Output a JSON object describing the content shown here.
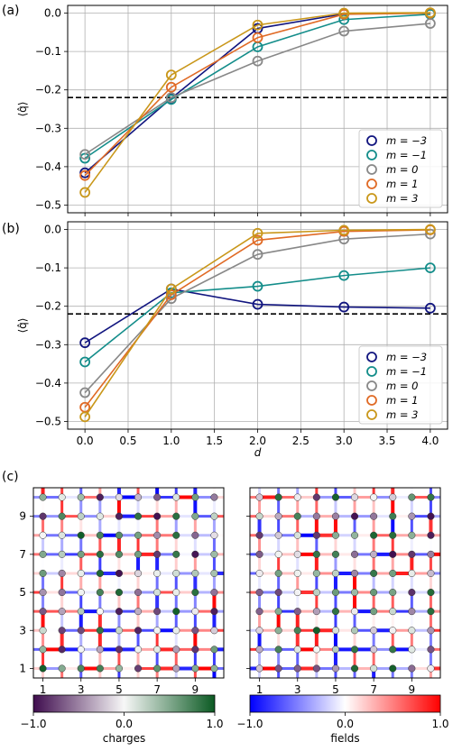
{
  "chart_data": [
    {
      "panel": "(a)",
      "type": "line",
      "x": [
        0,
        1,
        2,
        3,
        4
      ],
      "xlim": [
        -0.2,
        4.2
      ],
      "ylim": [
        -0.52,
        0.02
      ],
      "xticks": [
        "0.0",
        "0.5",
        "1.0",
        "1.5",
        "2.0",
        "2.5",
        "3.0",
        "3.5",
        "4.0"
      ],
      "yticks": [
        "0.0",
        "−0.1",
        "−0.2",
        "−0.3",
        "−0.4",
        "−0.5"
      ],
      "ylabel": "⟨q̂⟩",
      "xlabel": "",
      "hline": -0.22,
      "legend_position": "lower right",
      "grid": true,
      "series": [
        {
          "name": "m = −3",
          "color": "#11157f",
          "values": [
            -0.416,
            -0.222,
            -0.04,
            -0.002,
            0.0
          ]
        },
        {
          "name": "m = −1",
          "color": "#138d8a",
          "values": [
            -0.378,
            -0.225,
            -0.088,
            -0.017,
            -0.003
          ]
        },
        {
          "name": "m = 0",
          "color": "#888888",
          "values": [
            -0.368,
            -0.22,
            -0.125,
            -0.047,
            -0.027
          ]
        },
        {
          "name": "m = 1",
          "color": "#e06a25",
          "values": [
            -0.423,
            -0.193,
            -0.064,
            -0.003,
            0.0
          ]
        },
        {
          "name": "m = 3",
          "color": "#c9971a",
          "values": [
            -0.467,
            -0.161,
            -0.031,
            0.0,
            0.001
          ]
        }
      ]
    },
    {
      "panel": "(b)",
      "type": "line",
      "x": [
        0,
        1,
        2,
        3,
        4
      ],
      "xlim": [
        -0.2,
        4.2
      ],
      "ylim": [
        -0.52,
        0.02
      ],
      "xticks": [
        "0.0",
        "0.5",
        "1.0",
        "1.5",
        "2.0",
        "2.5",
        "3.0",
        "3.5",
        "4.0"
      ],
      "yticks": [
        "0.0",
        "−0.1",
        "−0.2",
        "−0.3",
        "−0.4",
        "−0.5"
      ],
      "ylabel": "⟨q̂⟩",
      "xlabel": "d",
      "hline": -0.22,
      "legend_position": "lower right",
      "grid": true,
      "series": [
        {
          "name": "m = −3",
          "color": "#11157f",
          "values": [
            -0.295,
            -0.155,
            -0.195,
            -0.202,
            -0.205
          ]
        },
        {
          "name": "m = −1",
          "color": "#138d8a",
          "values": [
            -0.345,
            -0.165,
            -0.148,
            -0.12,
            -0.1
          ]
        },
        {
          "name": "m = 0",
          "color": "#888888",
          "values": [
            -0.425,
            -0.18,
            -0.065,
            -0.025,
            -0.012
          ]
        },
        {
          "name": "m = 1",
          "color": "#e06a25",
          "values": [
            -0.463,
            -0.17,
            -0.028,
            -0.005,
            -0.001
          ]
        },
        {
          "name": "m = 3",
          "color": "#c9971a",
          "values": [
            -0.488,
            -0.155,
            -0.01,
            -0.002,
            0.0
          ]
        }
      ]
    },
    {
      "panel": "(c)",
      "type": "heatmap",
      "grid_size": [
        10,
        10
      ],
      "xticks": [
        "1",
        "3",
        "5",
        "7",
        "9"
      ],
      "yticks": [
        "1",
        "3",
        "5",
        "7",
        "9"
      ],
      "left_colorbar": {
        "label": "charges",
        "ticks": [
          "−1.0",
          "0.0",
          "1.0"
        ],
        "colors": [
          "#3f0c4e",
          "#f7f7f7",
          "#0b5a23"
        ]
      },
      "right_colorbar": {
        "label": "fields",
        "ticks": [
          "−1.0",
          "0.0",
          "1.0"
        ],
        "colors": [
          "#0000ff",
          "#ffffff",
          "#ff0000"
        ]
      }
    }
  ],
  "panel_labels": {
    "a": "(a)",
    "b": "(b)",
    "c": "(c)"
  }
}
